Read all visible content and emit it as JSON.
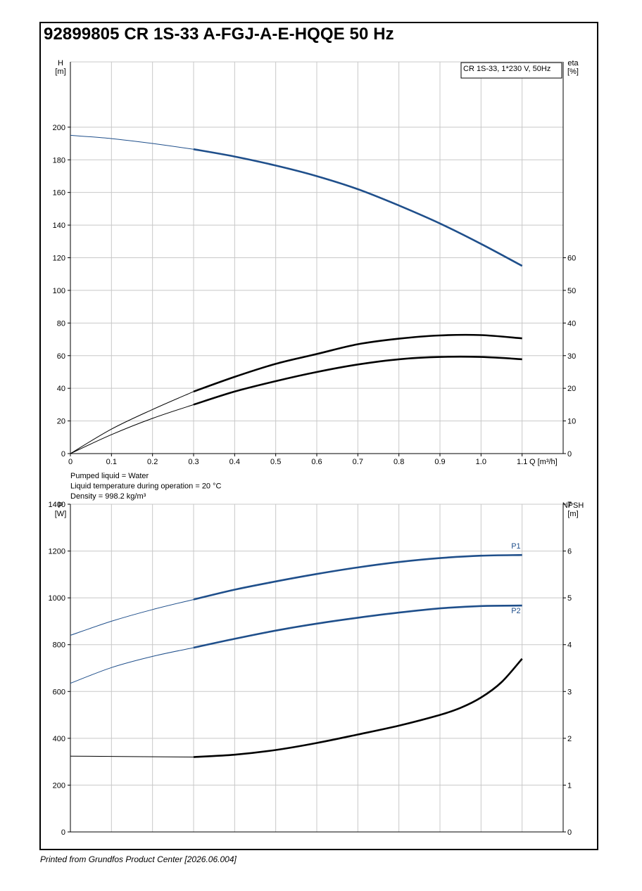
{
  "title": "92899805 CR 1S-33 A-FGJ-A-E-HQQE 50 Hz",
  "footer": "Printed from Grundfos Product Center [2026.06.004]",
  "colors": {
    "blue": "#1f4f8b",
    "black": "#000000",
    "grid": "#c8c8c8"
  },
  "liquid_info": [
    "Pumped liquid = Water",
    "Liquid temperature during operation = 20 °C",
    "Density = 998.2 kg/m³"
  ],
  "chart_data": [
    {
      "type": "line",
      "legend_box": "CR 1S-33, 1*230 V, 50Hz",
      "legend_placement": "top-right",
      "grid": true,
      "xlabel": "Q [m³/h]",
      "ylabel_left": [
        "H",
        "[m]"
      ],
      "ylabel_right": [
        "eta",
        "[%]"
      ],
      "xlim": [
        0,
        1.2
      ],
      "ylim_left": [
        0,
        240
      ],
      "ylim_right": [
        0,
        120
      ],
      "x_ticks": [
        "0",
        "0.1",
        "0.2",
        "0.3",
        "0.4",
        "0.5",
        "0.6",
        "0.7",
        "0.8",
        "0.9",
        "1.0",
        "1.1"
      ],
      "y_ticks_left": [
        "0",
        "20",
        "40",
        "60",
        "80",
        "100",
        "120",
        "140",
        "160",
        "180",
        "200"
      ],
      "y_ticks_right": [
        "0",
        "10",
        "20",
        "30",
        "40",
        "50",
        "60"
      ],
      "operating_range": [
        0.3,
        1.1
      ],
      "series": [
        {
          "axis": "left",
          "color": "blue",
          "x": [
            0,
            0.1,
            0.2,
            0.3,
            0.4,
            0.5,
            0.6,
            0.7,
            0.8,
            0.9,
            1.0,
            1.1
          ],
          "values": [
            195,
            193,
            190,
            186.5,
            182,
            176.5,
            170,
            162,
            152,
            141,
            128.5,
            115
          ]
        },
        {
          "axis": "right",
          "color": "black",
          "x": [
            0,
            0.1,
            0.2,
            0.3,
            0.4,
            0.5,
            0.6,
            0.7,
            0.8,
            0.9,
            1.0,
            1.1
          ],
          "values": [
            0,
            7.5,
            13.5,
            19,
            23.5,
            27.5,
            30.5,
            33.5,
            35.2,
            36.2,
            36.3,
            35.3
          ]
        },
        {
          "axis": "right",
          "color": "black",
          "x": [
            0,
            0.1,
            0.2,
            0.3,
            0.4,
            0.5,
            0.6,
            0.7,
            0.8,
            0.9,
            1.0,
            1.1
          ],
          "values": [
            0,
            5.8,
            10.8,
            15,
            19,
            22.2,
            25,
            27.3,
            28.9,
            29.6,
            29.6,
            28.9
          ]
        }
      ]
    },
    {
      "type": "line",
      "grid": true,
      "ylabel_left": [
        "P",
        "[W]"
      ],
      "ylabel_right": [
        "NPSH",
        "[m]"
      ],
      "xlim": [
        0,
        1.2
      ],
      "ylim_left": [
        0,
        1400
      ],
      "ylim_right": [
        0,
        7
      ],
      "y_ticks_left": [
        "0",
        "200",
        "400",
        "600",
        "800",
        "1000",
        "1200",
        "1400"
      ],
      "y_ticks_right": [
        "0",
        "1",
        "2",
        "3",
        "4",
        "5",
        "6",
        "7"
      ],
      "operating_range": [
        0.3,
        1.1
      ],
      "series": [
        {
          "name": "P1",
          "axis": "left",
          "color": "blue",
          "x": [
            0,
            0.1,
            0.2,
            0.3,
            0.4,
            0.5,
            0.6,
            0.7,
            0.8,
            0.9,
            1.0,
            1.1
          ],
          "values": [
            840,
            900,
            950,
            993,
            1035,
            1070,
            1102,
            1130,
            1153,
            1170,
            1180,
            1183
          ]
        },
        {
          "name": "P2",
          "axis": "left",
          "color": "blue",
          "x": [
            0,
            0.1,
            0.2,
            0.3,
            0.4,
            0.5,
            0.6,
            0.7,
            0.8,
            0.9,
            1.0,
            1.1
          ],
          "values": [
            635,
            702,
            750,
            787,
            825,
            860,
            890,
            915,
            937,
            955,
            965,
            967
          ]
        },
        {
          "axis": "right",
          "color": "black",
          "x": [
            0,
            0.3,
            0.4,
            0.5,
            0.6,
            0.7,
            0.8,
            0.9,
            0.95,
            1.0,
            1.05,
            1.1
          ],
          "values": [
            1.62,
            1.6,
            1.65,
            1.75,
            1.9,
            2.08,
            2.27,
            2.5,
            2.65,
            2.87,
            3.2,
            3.7
          ]
        }
      ]
    }
  ]
}
